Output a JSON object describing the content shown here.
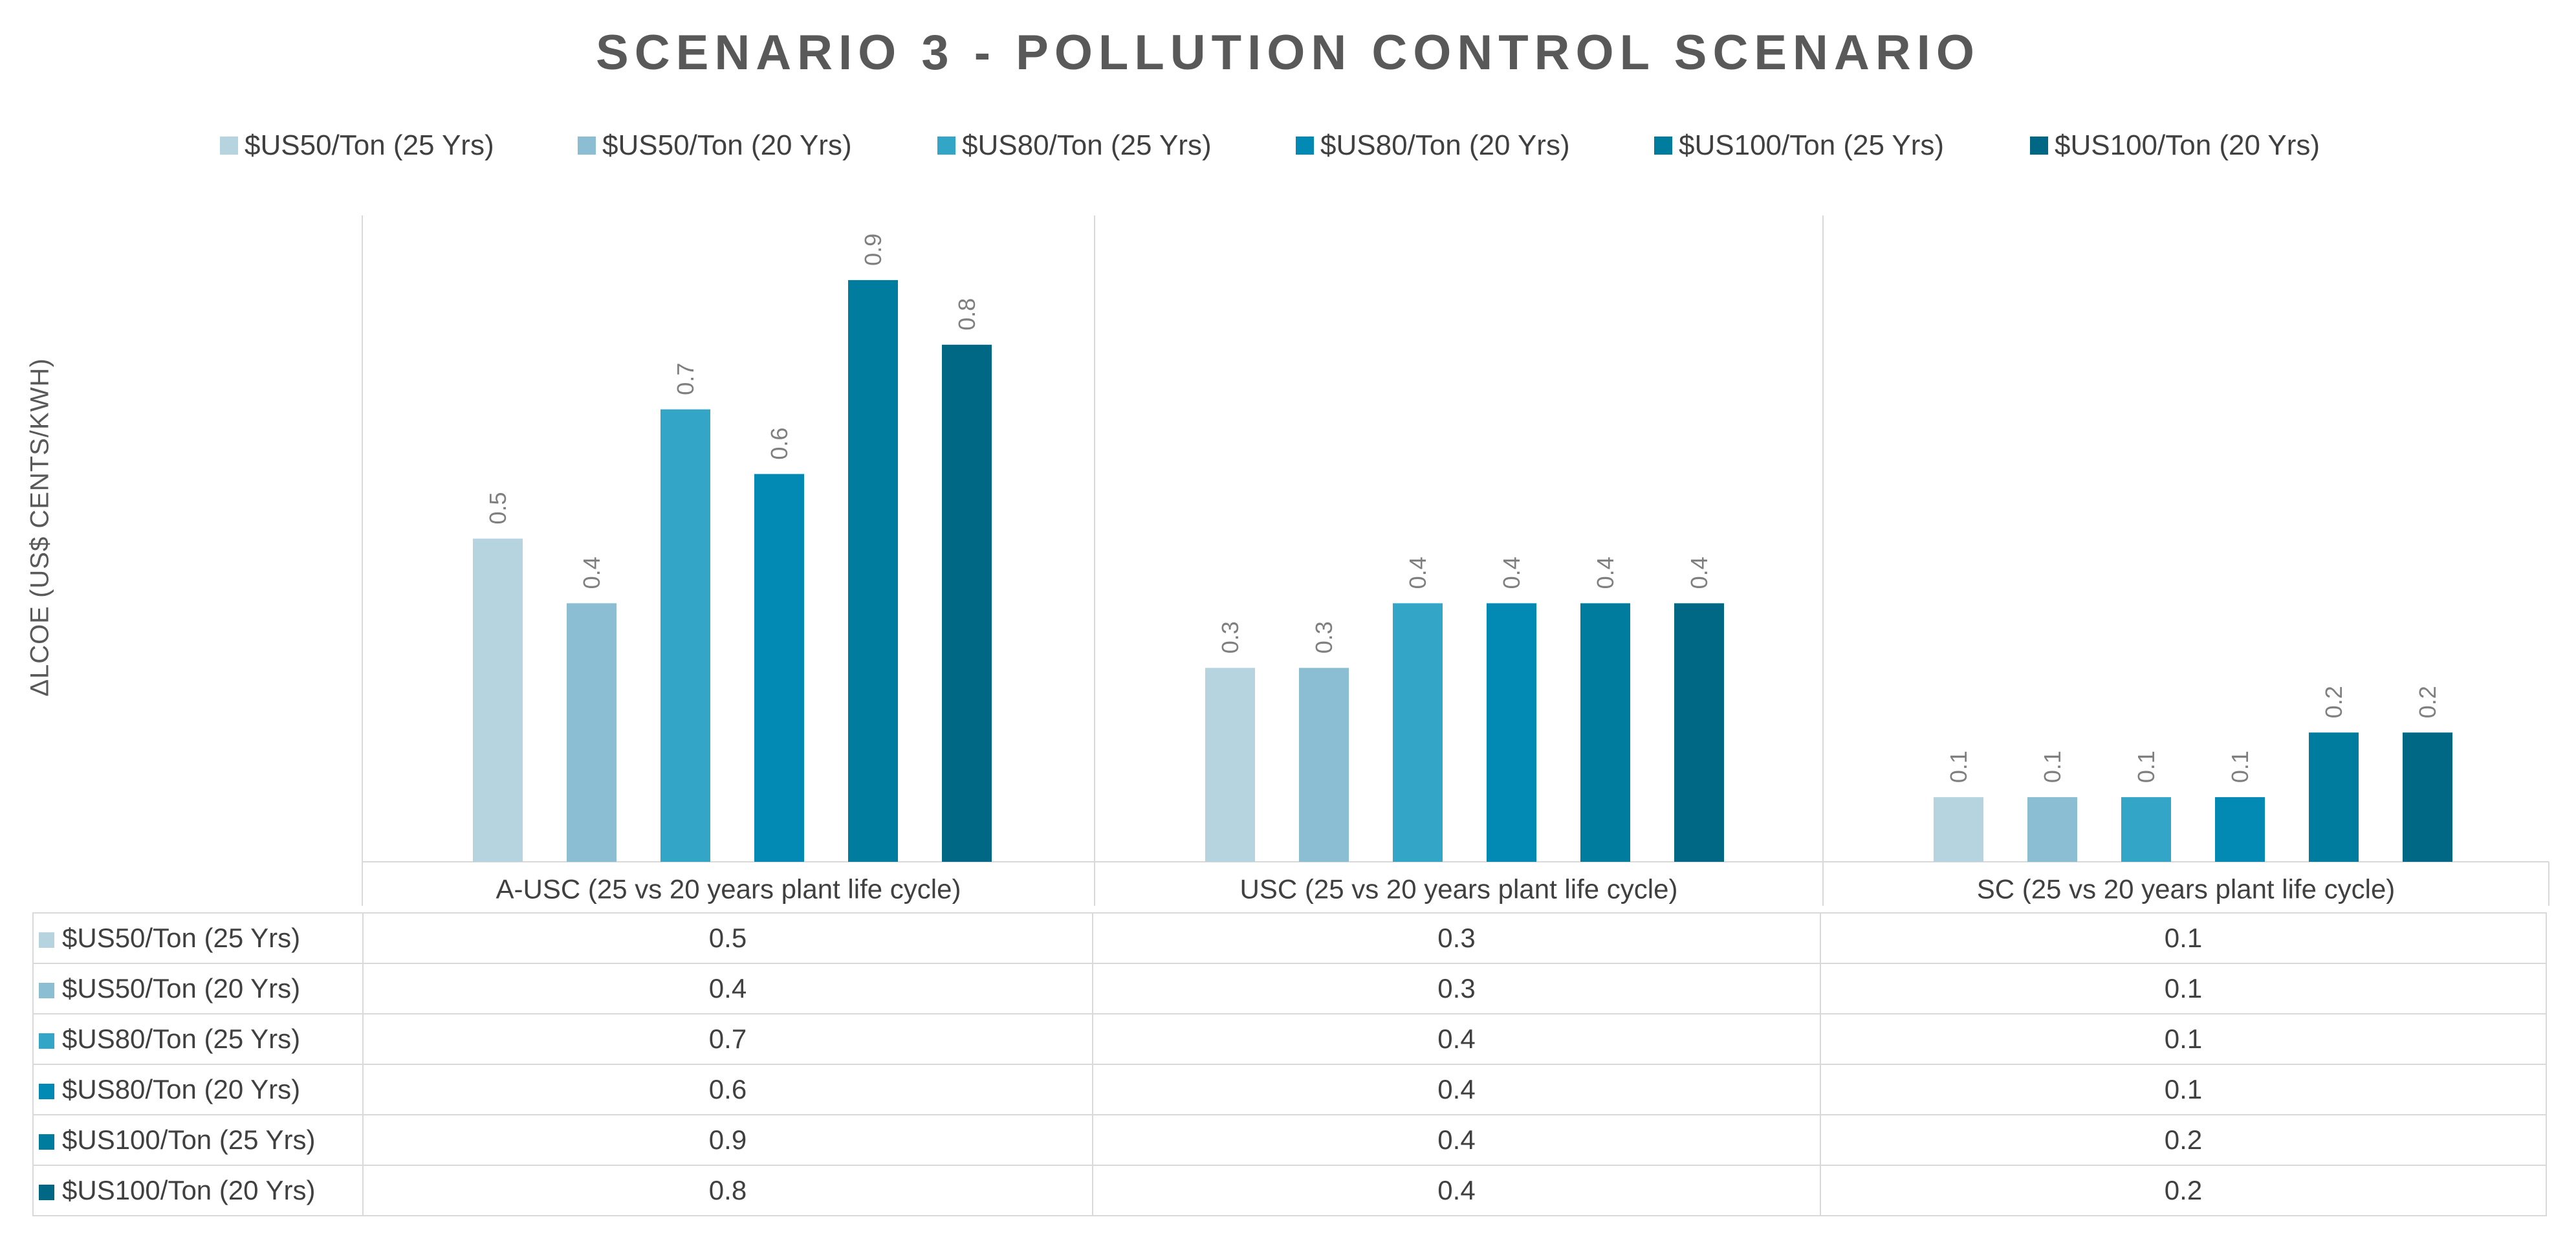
{
  "chart_data": {
    "type": "bar",
    "title": "SCENARIO 3 - POLLUTION CONTROL SCENARIO",
    "ylabel": "ΔLCOE (US$ CENTS/KWH)",
    "xlabel": "",
    "ylim": [
      0,
      1.0
    ],
    "grid": false,
    "legend_position": "top",
    "categories": [
      "A-USC (25 vs 20 years plant life cycle)",
      "USC (25 vs 20 years plant life cycle)",
      "SC (25 vs 20 years plant life cycle)"
    ],
    "series": [
      {
        "name": "$US50/Ton (25 Yrs)",
        "color": "#b5d4e0",
        "values": [
          0.5,
          0.3,
          0.1
        ]
      },
      {
        "name": "$US50/Ton (20 Yrs)",
        "color": "#8bbdd3",
        "values": [
          0.4,
          0.3,
          0.1
        ]
      },
      {
        "name": "$US80/Ton (25 Yrs)",
        "color": "#33a6c8",
        "values": [
          0.7,
          0.4,
          0.1
        ]
      },
      {
        "name": "$US80/Ton (20 Yrs)",
        "color": "#0289b4",
        "values": [
          0.6,
          0.4,
          0.1
        ]
      },
      {
        "name": "$US100/Ton (25 Yrs)",
        "color": "#007c9e",
        "values": [
          0.9,
          0.4,
          0.2
        ]
      },
      {
        "name": "$US100/Ton (20 Yrs)",
        "color": "#006784",
        "values": [
          0.8,
          0.4,
          0.2
        ]
      }
    ],
    "data_table": true
  }
}
